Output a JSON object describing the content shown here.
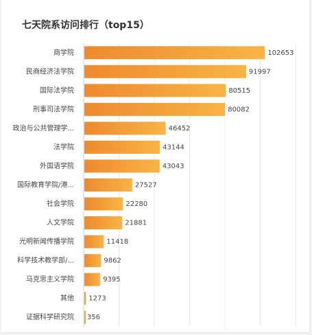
{
  "chart_data": {
    "type": "bar",
    "orientation": "horizontal",
    "title": "七天院系访问排行（top15）",
    "categories": [
      "商学院",
      "民商经济法学院",
      "国际法学院",
      "刑事司法学院",
      "政治与公共管理学...",
      "法学院",
      "外国语学院",
      "国际教育学院/港...",
      "社会学院",
      "人文学院",
      "光明新闻传播学院",
      "科学技术教学部/...",
      "马克思主义学院",
      "其他",
      "证据科学研究院"
    ],
    "values": [
      102653,
      91997,
      80515,
      80082,
      46452,
      43144,
      43043,
      27527,
      22280,
      21881,
      11418,
      9862,
      9395,
      1273,
      356
    ],
    "xlim": [
      0,
      120000
    ],
    "grid": true,
    "legend": "none",
    "colors": {
      "bar_start": "#ee8a2e",
      "bar_end": "#f8b447",
      "grid": "#e8e8e8"
    }
  }
}
